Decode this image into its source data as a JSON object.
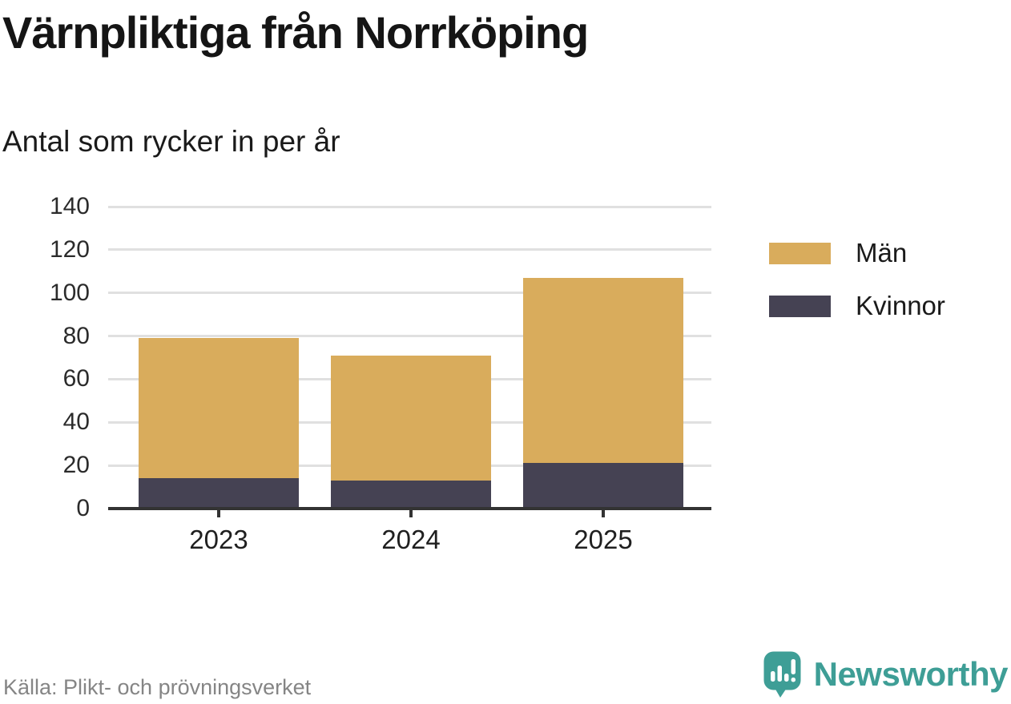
{
  "header": {
    "title": "Värnpliktiga från Norrköping",
    "subtitle": "Antal som rycker in per år"
  },
  "chart_data": {
    "type": "bar",
    "stacked": true,
    "title": "Värnpliktiga från Norrköping",
    "subtitle": "Antal som rycker in per år",
    "categories": [
      "2023",
      "2024",
      "2025"
    ],
    "series": [
      {
        "name": "Män",
        "color": "#D9AC5C",
        "values": [
          65,
          58,
          86
        ]
      },
      {
        "name": "Kvinnor",
        "color": "#454253",
        "values": [
          14,
          13,
          21
        ]
      }
    ],
    "stack_order_bottom_to_top": [
      "Kvinnor",
      "Män"
    ],
    "totals": [
      79,
      71,
      107
    ],
    "ylim": [
      0,
      140
    ],
    "yticks": [
      0,
      20,
      40,
      60,
      80,
      100,
      120,
      140
    ],
    "xlabel": "",
    "ylabel": "",
    "grid": "horizontal",
    "legend_position": "right"
  },
  "colors": {
    "men": "#D9AC5C",
    "women": "#454253",
    "gridline": "#E0E0E0",
    "axis": "#333333",
    "brand_teal": "#3E9E96",
    "muted_text": "#858585"
  },
  "footer": {
    "source": "Källa: Plikt- och prövningsverket",
    "brand": "Newsworthy"
  }
}
